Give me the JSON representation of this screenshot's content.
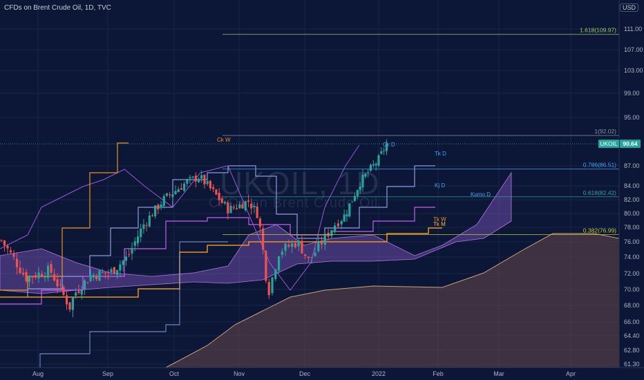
{
  "header": {
    "title": "CFDs on Brent Crude Oil, 1D, TVC",
    "currency": "USD"
  },
  "watermark": {
    "symbol": "UKOIL, 1D",
    "name": "CFDs on Brent Crude Oil"
  },
  "price_badge": {
    "symbol": "UKOIL",
    "value": "90.64",
    "color": "#26a69a"
  },
  "colors": {
    "up": "#26a69a",
    "down": "#ef5350",
    "tenkan": "#b5b8ff",
    "kijun": "#c85ff0",
    "chikou": "#9b59d0",
    "weekly": "#f0921e",
    "kumo_bull": "#8e5fcf",
    "kumo_bear": "#7a5150"
  },
  "chart_data": {
    "type": "candlestick",
    "title": "CFDs on Brent Crude Oil, 1D, TVC",
    "y_axis": {
      "ticks": [
        "111.00",
        "107.00",
        "103.00",
        "99.00",
        "95.00",
        "87.00",
        "84.00",
        "82.00",
        "80.00",
        "78.00",
        "76.00",
        "74.00",
        "72.00",
        "70.00",
        "68.00",
        "66.00",
        "64.40",
        "62.80",
        "61.30"
      ]
    },
    "x_axis": {
      "ticks": [
        "Aug",
        "Sep",
        "Oct",
        "Nov",
        "Dec",
        "2022",
        "Feb",
        "Mar",
        "Apr"
      ]
    },
    "fib_levels": [
      {
        "label": "1.618(109.97)",
        "value": 109.97,
        "color": "#9ccc65"
      },
      {
        "label": "1(92.02)",
        "value": 92.02,
        "color": "#8a93a8"
      },
      {
        "label": "0.786(86.51)",
        "value": 86.51,
        "color": "#42a5f5"
      },
      {
        "label": "0.618(82.42)",
        "value": 82.42,
        "color": "#26a69a"
      },
      {
        "label": "0.382(76.99)",
        "value": 76.99,
        "color": "#c0ca33"
      }
    ],
    "indicator_labels": [
      {
        "label": "Ck W",
        "color": "#f0921e"
      },
      {
        "label": "Ck D",
        "color": "#42a5f5"
      },
      {
        "label": "Tk D",
        "color": "#42a5f5"
      },
      {
        "label": "Kj D",
        "color": "#42a5f5"
      },
      {
        "label": "Kumo D",
        "color": "#42a5f5"
      },
      {
        "label": "Tk W",
        "color": "#f0921e"
      },
      {
        "label": "Tk M",
        "color": "#f0c040"
      }
    ],
    "last_price": 90.64
  }
}
